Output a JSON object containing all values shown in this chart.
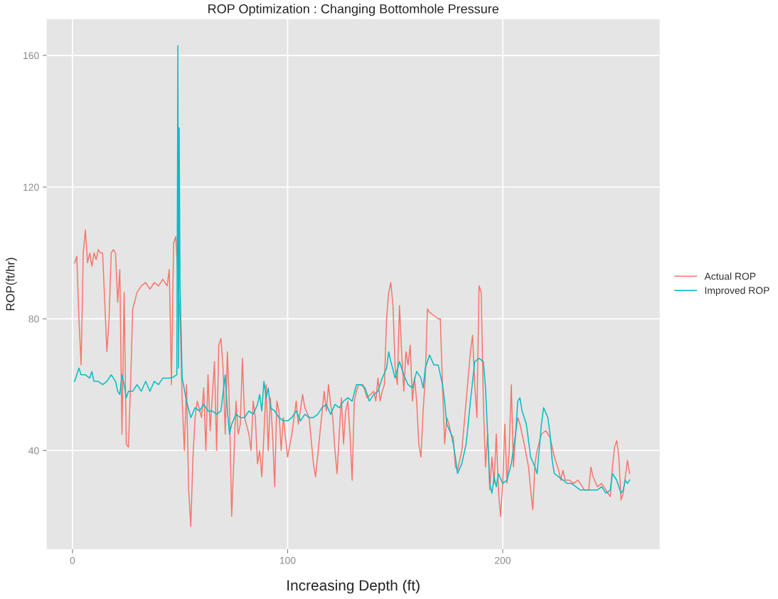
{
  "chart_data": {
    "type": "line",
    "title": "ROP Optimization : Changing Bottomhole Pressure",
    "xlabel": "Increasing Depth (ft)",
    "ylabel": "ROP(ft/hr)",
    "xlim": [
      -12,
      273
    ],
    "ylim": [
      10,
      171
    ],
    "xticks": [
      0,
      100,
      200
    ],
    "yticks": [
      40,
      80,
      120,
      160
    ],
    "grid": true,
    "legend": "right",
    "line_style": "solid",
    "marker": "none",
    "series": [
      {
        "name": "Actual ROP",
        "color": "#f8766d",
        "x": [
          1,
          2,
          3,
          4,
          5,
          6,
          7,
          8,
          9,
          10,
          11,
          12,
          13,
          14,
          15,
          16,
          17,
          18,
          19,
          20,
          21,
          22,
          23,
          24,
          25,
          26,
          27,
          28,
          30,
          32,
          34,
          36,
          38,
          40,
          42,
          44,
          45,
          46,
          47,
          48,
          50,
          51,
          52,
          53,
          54,
          55,
          56,
          57,
          58,
          60,
          61,
          62,
          63,
          64,
          66,
          67,
          68,
          69,
          70,
          71,
          72,
          73,
          74,
          75,
          76,
          77,
          78,
          79,
          80,
          82,
          83,
          84,
          85,
          86,
          87,
          88,
          89,
          90,
          91,
          92,
          93,
          94,
          95,
          96,
          97,
          98,
          100,
          102,
          104,
          105,
          107,
          108,
          110,
          112,
          113,
          115,
          117,
          118,
          119,
          120,
          121,
          122,
          123,
          124,
          125,
          126,
          127,
          128,
          129,
          130,
          131,
          132,
          133,
          135,
          137,
          140,
          141,
          142,
          143,
          144,
          145,
          146,
          147,
          148,
          149,
          150,
          151,
          152,
          153,
          154,
          155,
          156,
          157,
          158,
          159,
          160,
          161,
          162,
          163,
          164,
          165,
          166,
          168,
          170,
          171,
          172,
          173,
          174,
          175,
          176,
          177,
          178,
          179,
          181,
          183,
          185,
          186,
          187,
          188,
          189,
          190,
          191,
          192,
          193,
          194,
          195,
          196,
          197,
          198,
          199,
          200,
          201,
          202,
          203,
          204,
          205,
          206,
          207,
          208,
          210,
          212,
          213,
          214,
          215,
          216,
          218,
          220,
          222,
          224,
          226,
          227,
          228,
          229,
          231,
          233,
          235,
          237,
          238,
          240,
          241,
          242,
          244,
          246,
          248,
          250,
          251,
          252,
          253,
          254,
          255,
          256,
          257,
          258,
          259
        ],
        "values": [
          97,
          99,
          80,
          66,
          100,
          107,
          97,
          100,
          96,
          100,
          98,
          101,
          100,
          100,
          85,
          70,
          80,
          100,
          101,
          100,
          85,
          95,
          45,
          88,
          42,
          41,
          60,
          83,
          88,
          90,
          91,
          89,
          91,
          90,
          92,
          90,
          95,
          60,
          103,
          105,
          80,
          55,
          40,
          60,
          28,
          17,
          38,
          50,
          55,
          50,
          59,
          40,
          63,
          46,
          67,
          40,
          72,
          74,
          65,
          45,
          70,
          52,
          20,
          37,
          55,
          45,
          48,
          68,
          50,
          45,
          40,
          55,
          50,
          36,
          40,
          32,
          45,
          60,
          40,
          56,
          45,
          29,
          55,
          52,
          40,
          50,
          38,
          45,
          55,
          48,
          57,
          53,
          50,
          36,
          32,
          45,
          58,
          52,
          60,
          54,
          50,
          40,
          33,
          45,
          56,
          42,
          52,
          55,
          45,
          31,
          55,
          58,
          60,
          60,
          56,
          58,
          55,
          62,
          55,
          58,
          60,
          80,
          88,
          91,
          84,
          65,
          60,
          84,
          70,
          58,
          70,
          66,
          72,
          55,
          62,
          55,
          42,
          38,
          52,
          62,
          83,
          82,
          81,
          80,
          80,
          60,
          42,
          50,
          48,
          45,
          44,
          35,
          34,
          40,
          55,
          70,
          75,
          60,
          50,
          90,
          88,
          55,
          35,
          45,
          28,
          38,
          30,
          45,
          28,
          20,
          30,
          48,
          30,
          40,
          60,
          35,
          45,
          50,
          48,
          42,
          35,
          28,
          22,
          36,
          40,
          45,
          46,
          44,
          38,
          34,
          31,
          34,
          31,
          31,
          30,
          31,
          29,
          28,
          28,
          35,
          32,
          29,
          30,
          28,
          26,
          35,
          41,
          43,
          38,
          25,
          27,
          32,
          37,
          33
        ]
      },
      {
        "name": "Improved ROP",
        "color": "#00bfc4",
        "x": [
          1,
          2,
          3,
          4,
          6,
          8,
          9,
          10,
          12,
          14,
          16,
          18,
          20,
          21,
          22,
          23,
          24,
          25,
          26,
          28,
          30,
          32,
          34,
          36,
          38,
          40,
          42,
          44,
          46,
          48.5,
          49,
          49.3,
          49.6,
          50,
          51,
          53,
          55,
          57,
          59,
          61,
          63,
          65,
          67,
          69,
          71,
          72,
          73,
          74,
          76,
          78,
          80,
          82,
          84,
          86,
          87,
          88,
          89,
          90,
          91,
          92,
          94,
          96,
          98,
          100,
          102,
          104,
          106,
          108,
          110,
          112,
          114,
          116,
          118,
          120,
          122,
          124,
          126,
          128,
          130,
          132,
          134,
          136,
          138,
          140,
          142,
          144,
          146,
          147,
          148,
          150,
          152,
          154,
          156,
          158,
          160,
          162,
          163,
          164,
          166,
          168,
          170,
          172,
          173,
          174,
          176,
          177,
          178,
          179,
          181,
          183,
          185,
          187,
          189,
          191,
          192,
          193,
          194,
          195,
          196,
          197,
          198,
          200,
          202,
          204,
          206,
          207,
          208,
          209,
          211,
          213,
          215,
          216,
          218,
          219,
          221,
          222,
          223,
          224,
          226,
          228,
          230,
          232,
          234,
          236,
          238,
          240,
          242,
          244,
          246,
          248,
          250,
          251,
          252,
          253,
          255,
          256,
          257,
          258,
          259
        ],
        "values": [
          61,
          63,
          65,
          63,
          63,
          62,
          64,
          61,
          61,
          60,
          61,
          63,
          61,
          58,
          57,
          63,
          60,
          56,
          58,
          58,
          60,
          58,
          61,
          58,
          61,
          60,
          62,
          62,
          62,
          63,
          163,
          65,
          138,
          90,
          62,
          55,
          50,
          53,
          52,
          54,
          52,
          52,
          51,
          52,
          63,
          52,
          45,
          48,
          51,
          50,
          50,
          52,
          51,
          54,
          57,
          52,
          61,
          56,
          59,
          53,
          52,
          50,
          49,
          49,
          50,
          52,
          49,
          51,
          50,
          50,
          51,
          53,
          54,
          51,
          54,
          53,
          55,
          56,
          55,
          60,
          60,
          59,
          55,
          57,
          58,
          62,
          65,
          70,
          67,
          62,
          67,
          63,
          60,
          59,
          64,
          62,
          59,
          65,
          69,
          66,
          66,
          60,
          55,
          48,
          45,
          42,
          38,
          33,
          36,
          42,
          55,
          67,
          68,
          67,
          59,
          45,
          30,
          27,
          32,
          29,
          33,
          30,
          31,
          36,
          45,
          55,
          56,
          52,
          48,
          38,
          35,
          33,
          48,
          53,
          50,
          45,
          37,
          33,
          32,
          31,
          30,
          30,
          29,
          28,
          28,
          28,
          28,
          28,
          29,
          27,
          28,
          33,
          32,
          31,
          27,
          28,
          31,
          30,
          31
        ]
      }
    ]
  }
}
